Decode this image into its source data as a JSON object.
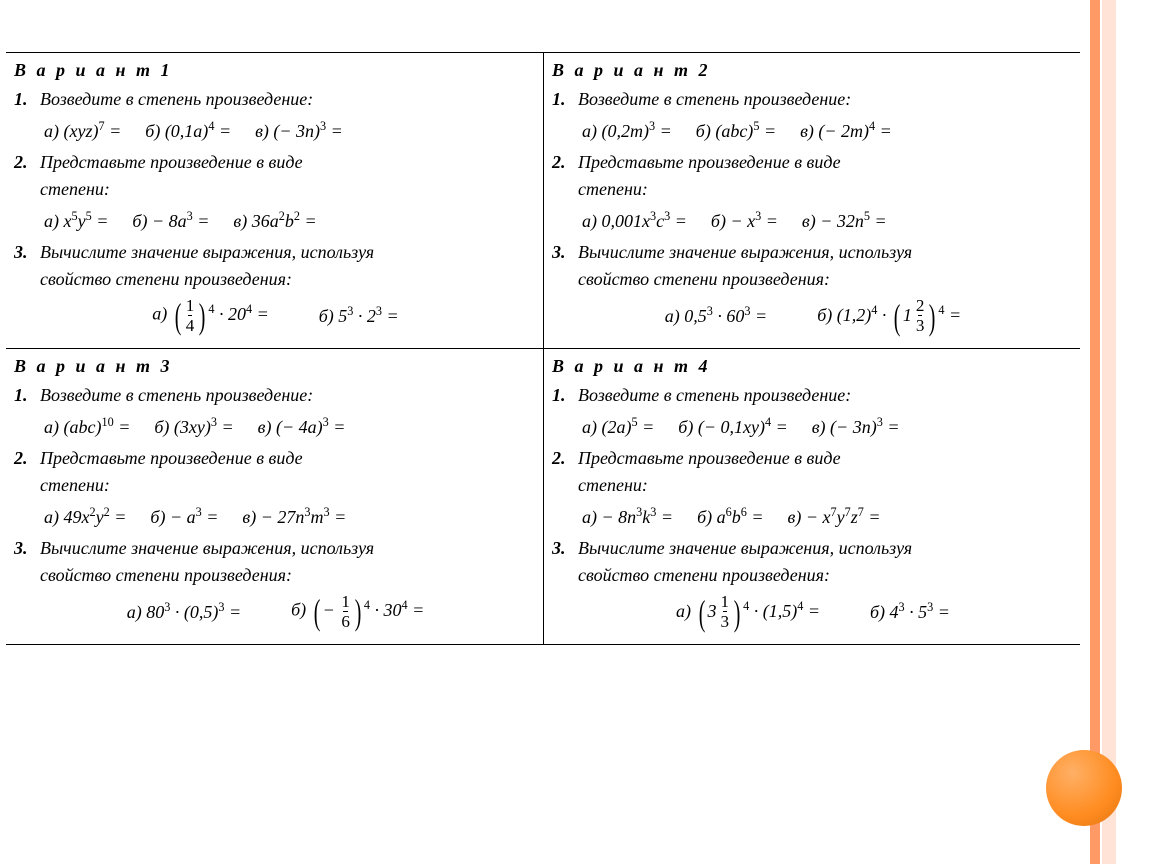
{
  "colors": {
    "stripe_dark": "#ff9966",
    "stripe_light": "#ffe3d6",
    "circle_light": "#ffb066",
    "circle_mid": "#ff8c20",
    "circle_dark": "#e07410"
  },
  "titles": {
    "v1": "В а р и а н т 1",
    "v2": "В а р и а н т  2",
    "v3": "В а р и а н т 3",
    "v4": "В а р и а н т 4"
  },
  "tasks": {
    "t1": "Возведите в степень произведение:",
    "t2a": "Представьте произведение в виде",
    "t2b": "степени:",
    "t3a": "Вычислите значение выражения, используя",
    "t3b": "свойство степени произведения:"
  },
  "labels": {
    "a": "а)",
    "b": "б)",
    "v": "в)",
    "n1": "1.",
    "n2": "2.",
    "n3": "3."
  },
  "expr": {
    "v1_1a": "(xyz)<sup>7</sup> =",
    "v1_1b": "(0,1a)<sup>4</sup> =",
    "v1_1c": "(− 3n)<sup>3</sup> =",
    "v1_2a": "x<sup>5</sup>y<sup>5</sup> =",
    "v1_2b": "− 8a<sup>3</sup> =",
    "v1_2c": "36a<sup>2</sup>b<sup>2</sup> =",
    "v1_3a": "__FRAC_1_4__<sup>4</sup> · 20<sup>4</sup> =",
    "v1_3b": "5<sup>3</sup> · 2<sup>3</sup> =",
    "v2_1a": "(0,2m)<sup>3</sup> =",
    "v2_1b": "(abc)<sup>5</sup> =",
    "v2_1c": "(− 2m)<sup>4</sup> =",
    "v2_2a": "0,001x<sup>3</sup>c<sup>3</sup> =",
    "v2_2b": "− x<sup>3</sup> =",
    "v2_2c": "− 32n<sup>5</sup> =",
    "v2_3a": "0,5<sup>3</sup> · 60<sup>3</sup> =",
    "v2_3b": "(1,2)<sup>4</sup> · __MIX_1_2_3__<sup>4</sup> =",
    "v3_1a": "(abc)<sup>10</sup> =",
    "v3_1b": "(3xy)<sup>3</sup> =",
    "v3_1c": "(− 4a)<sup>3</sup> =",
    "v3_2a": "49x<sup>2</sup>y<sup>2</sup> =",
    "v3_2b": "− a<sup>3</sup> =",
    "v3_2c": "− 27n<sup>3</sup>m<sup>3</sup> =",
    "v3_3a": "80<sup>3</sup> · (0,5)<sup>3</sup> =",
    "v3_3b": "__FRAC_-1_6__<sup>4</sup> · 30<sup>4</sup> =",
    "v4_1a": "(2a)<sup>5</sup> =",
    "v4_1b": "(− 0,1xy)<sup>4</sup> =",
    "v4_1c": "(− 3n)<sup>3</sup> =",
    "v4_2a": "− 8n<sup>3</sup>k<sup>3</sup> =",
    "v4_2b": "a<sup>6</sup>b<sup>6</sup> =",
    "v4_2c": "− x<sup>7</sup>y<sup>7</sup>z<sup>7</sup> =",
    "v4_3a": "__MIX_3_1_3__<sup>4</sup> · (1,5)<sup>4</sup> =",
    "v4_3b": "4<sup>3</sup> · 5<sup>3</sup> ="
  }
}
